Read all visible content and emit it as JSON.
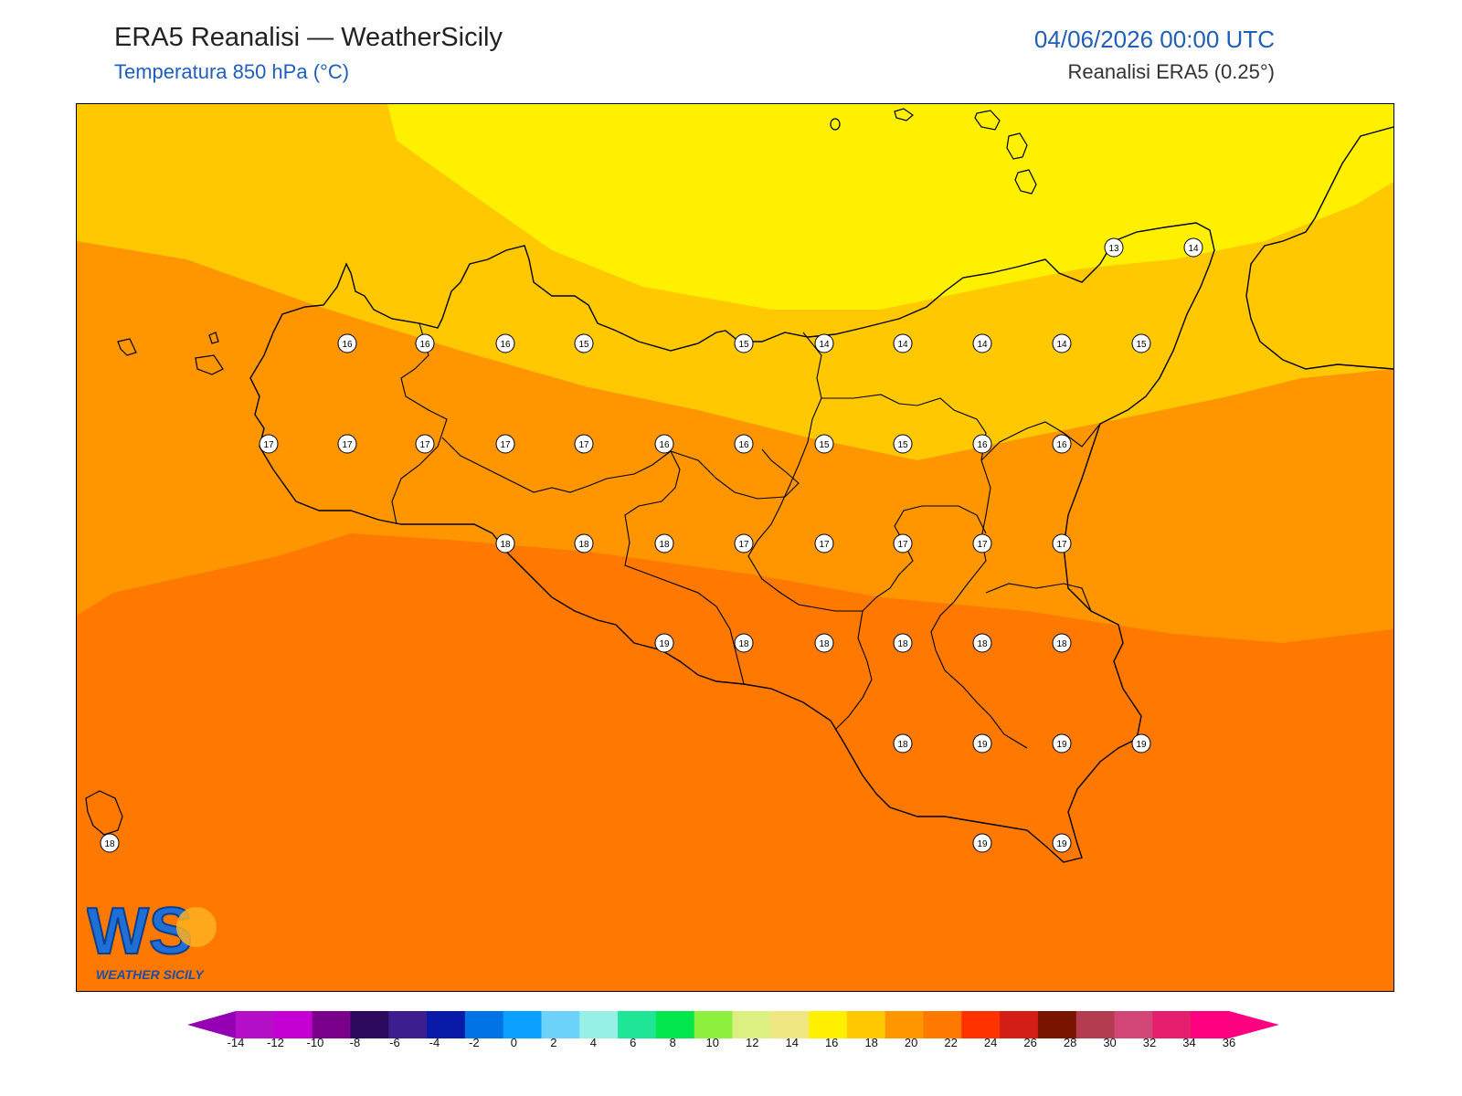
{
  "header": {
    "title": "ERA5 Reanalisi — WeatherSicily",
    "subtitle": "Temperatura 850 hPa (°C)",
    "datetime": "04/06/2026 00:00 UTC",
    "source": "Reanalisi ERA5 (0.25°)"
  },
  "logo": {
    "text": "WEATHER SICILY",
    "letters": "WS"
  },
  "colorbar": {
    "ticks": [
      "-14",
      "-12",
      "-10",
      "-8",
      "-6",
      "-4",
      "-2",
      "0",
      "2",
      "4",
      "6",
      "8",
      "10",
      "12",
      "14",
      "16",
      "18",
      "20",
      "22",
      "24",
      "26",
      "28",
      "30",
      "32",
      "34",
      "36"
    ],
    "colors": [
      "#b50fc8",
      "#c400d2",
      "#7a008c",
      "#2e0a5e",
      "#3c1e8e",
      "#0a1aa8",
      "#0073e6",
      "#0aa0ff",
      "#6dd2fa",
      "#96f0e6",
      "#1ee696",
      "#00e64b",
      "#8cf03c",
      "#dcf082",
      "#f0e682",
      "#fff000",
      "#ffc800",
      "#ff9600",
      "#ff7800",
      "#ff3200",
      "#d21e14",
      "#781400",
      "#b43c50",
      "#d24678",
      "#e61e6e",
      "#ff0080"
    ],
    "left_cap": "#9600b4",
    "right_cap": "#ff0080"
  },
  "temp_labels": [
    "13",
    "14",
    "16",
    "16",
    "16",
    "15",
    "15",
    "14",
    "14",
    "14",
    "14",
    "15",
    "17",
    "17",
    "17",
    "17",
    "17",
    "16",
    "16",
    "15",
    "15",
    "16",
    "16",
    "18",
    "18",
    "18",
    "17",
    "17",
    "17",
    "17",
    "17",
    "19",
    "18",
    "18",
    "18",
    "18",
    "18",
    "18",
    "19",
    "19",
    "19",
    "18",
    "19",
    "19"
  ],
  "colors": {
    "band_14": "#fff000",
    "band_16": "#ffc800",
    "band_18": "#ff9600",
    "band_20": "#ff7800"
  }
}
